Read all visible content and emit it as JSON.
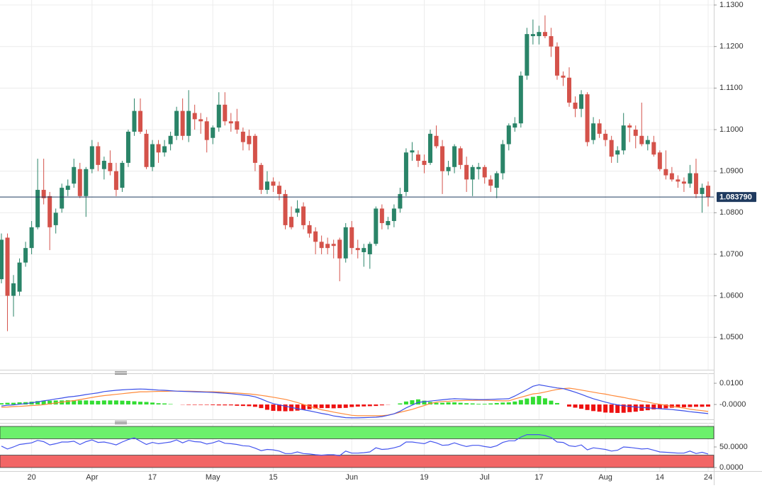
{
  "chart_data": {
    "type": "candlestick",
    "up_color": "#2a8468",
    "down_color": "#d4524a",
    "categories": [
      null,
      null,
      null,
      null,
      null,
      "20",
      null,
      null,
      null,
      null,
      null,
      null,
      null,
      null,
      null,
      "Apr",
      null,
      null,
      null,
      null,
      null,
      null,
      null,
      null,
      null,
      "17",
      null,
      null,
      null,
      null,
      null,
      null,
      null,
      null,
      null,
      "May",
      null,
      null,
      null,
      null,
      null,
      null,
      null,
      null,
      null,
      "15",
      null,
      null,
      null,
      null,
      null,
      null,
      null,
      null,
      null,
      null,
      null,
      null,
      "Jun",
      null,
      null,
      null,
      null,
      null,
      null,
      null,
      null,
      null,
      null,
      null,
      "19",
      null,
      null,
      null,
      null,
      null,
      null,
      null,
      null,
      null,
      "Jul",
      null,
      null,
      null,
      null,
      null,
      null,
      null,
      null,
      "17",
      null,
      null,
      null,
      null,
      null,
      null,
      null,
      null,
      null,
      null,
      "Aug",
      null,
      null,
      null,
      null,
      null,
      null,
      null,
      null,
      "14",
      null,
      null,
      null,
      null,
      null,
      null,
      null,
      "24"
    ],
    "ohlc": [
      [
        1.064,
        1.075,
        1.063,
        1.0735
      ],
      [
        1.074,
        1.075,
        1.0515,
        1.06
      ],
      [
        1.06,
        1.065,
        1.055,
        1.063
      ],
      [
        1.061,
        1.069,
        1.06,
        1.068
      ],
      [
        1.068,
        1.073,
        1.067,
        1.0715
      ],
      [
        1.0715,
        1.078,
        1.07,
        1.0765
      ],
      [
        1.0765,
        1.093,
        1.076,
        1.0855
      ],
      [
        1.0855,
        1.093,
        1.082,
        1.0835
      ],
      [
        1.084,
        1.085,
        1.071,
        1.0765
      ],
      [
        1.077,
        1.081,
        1.075,
        1.08
      ],
      [
        1.081,
        1.087,
        1.08,
        1.086
      ],
      [
        1.0855,
        1.088,
        1.084,
        1.0865
      ],
      [
        1.087,
        1.093,
        1.086,
        1.091
      ],
      [
        1.0905,
        1.092,
        1.0835,
        1.084
      ],
      [
        1.084,
        1.091,
        1.079,
        1.0905
      ],
      [
        1.0905,
        1.0975,
        1.0895,
        1.096
      ],
      [
        1.096,
        1.097,
        1.09,
        1.0915
      ],
      [
        1.0905,
        1.0935,
        1.088,
        1.0925
      ],
      [
        1.092,
        1.095,
        1.089,
        1.09
      ],
      [
        1.09,
        1.092,
        1.084,
        1.0855
      ],
      [
        1.086,
        1.0925,
        1.085,
        1.092
      ],
      [
        1.092,
        1.1,
        1.091,
        1.0995
      ],
      [
        1.0995,
        1.1075,
        1.0985,
        1.1045
      ],
      [
        1.1045,
        1.1075,
        1.099,
        1.0995
      ],
      [
        1.099,
        1.1,
        1.0905,
        1.091
      ],
      [
        1.091,
        1.0975,
        1.09,
        1.0965
      ],
      [
        1.0965,
        1.0975,
        1.092,
        1.0945
      ],
      [
        1.0945,
        1.0975,
        1.0935,
        1.096
      ],
      [
        1.0965,
        1.0995,
        1.095,
        1.0985
      ],
      [
        1.0985,
        1.1055,
        1.0975,
        1.1045
      ],
      [
        1.1045,
        1.1075,
        1.0975,
        1.0985
      ],
      [
        1.0985,
        1.1095,
        1.097,
        1.1045
      ],
      [
        1.104,
        1.106,
        1.1,
        1.1025
      ],
      [
        1.1025,
        1.104,
        1.099,
        1.102
      ],
      [
        1.102,
        1.103,
        1.0945,
        1.0975
      ],
      [
        1.098,
        1.101,
        1.0965,
        1.1005
      ],
      [
        1.1005,
        1.109,
        1.0995,
        1.106
      ],
      [
        1.106,
        1.109,
        1.101,
        1.102
      ],
      [
        1.102,
        1.104,
        1.0995,
        1.1015
      ],
      [
        1.102,
        1.105,
        1.099,
        1.1
      ],
      [
        1.0995,
        1.1005,
        1.095,
        1.097
      ],
      [
        1.0985,
        1.1,
        1.095,
        1.0965
      ],
      [
        1.0985,
        1.099,
        1.09,
        1.092
      ],
      [
        1.0915,
        1.092,
        1.0845,
        1.0855
      ],
      [
        1.0855,
        1.09,
        1.0845,
        1.0875
      ],
      [
        1.0875,
        1.0885,
        1.085,
        1.0865
      ],
      [
        1.0865,
        1.0875,
        1.083,
        1.0845
      ],
      [
        1.0845,
        1.0855,
        1.076,
        1.077
      ],
      [
        1.079,
        1.0815,
        1.076,
        1.0765
      ],
      [
        1.08,
        1.083,
        1.079,
        1.081
      ],
      [
        1.0815,
        1.0825,
        1.076,
        1.077
      ],
      [
        1.077,
        1.078,
        1.074,
        1.075
      ],
      [
        1.0755,
        1.0765,
        1.07,
        1.073
      ],
      [
        1.073,
        1.0745,
        1.07,
        1.0715
      ],
      [
        1.0725,
        1.074,
        1.07,
        1.0715
      ],
      [
        1.0725,
        1.0735,
        1.069,
        1.072
      ],
      [
        1.0735,
        1.074,
        1.0635,
        1.069
      ],
      [
        1.069,
        1.0775,
        1.068,
        1.0765
      ],
      [
        1.0765,
        1.078,
        1.07,
        1.0715
      ],
      [
        1.0715,
        1.0735,
        1.069,
        1.071
      ],
      [
        1.0705,
        1.0725,
        1.067,
        1.0715
      ],
      [
        1.07,
        1.073,
        1.0665,
        1.0725
      ],
      [
        1.0725,
        1.0815,
        1.072,
        1.081
      ],
      [
        1.081,
        1.082,
        1.076,
        1.0775
      ],
      [
        1.077,
        1.079,
        1.076,
        1.078
      ],
      [
        1.078,
        1.082,
        1.0765,
        1.081
      ],
      [
        1.081,
        1.086,
        1.08,
        1.0845
      ],
      [
        1.085,
        1.0955,
        1.084,
        1.0945
      ],
      [
        1.0945,
        1.097,
        1.0925,
        1.095
      ],
      [
        1.094,
        1.095,
        1.091,
        1.0925
      ],
      [
        1.0925,
        1.094,
        1.0895,
        1.0915
      ],
      [
        1.092,
        1.1,
        1.0915,
        1.099
      ],
      [
        1.0985,
        1.101,
        1.0955,
        1.096
      ],
      [
        1.096,
        1.0975,
        1.0845,
        1.09
      ],
      [
        1.09,
        1.0925,
        1.089,
        1.091
      ],
      [
        1.091,
        1.0965,
        1.0895,
        1.096
      ],
      [
        1.0955,
        1.096,
        1.0905,
        1.0915
      ],
      [
        1.0915,
        1.0935,
        1.085,
        1.088
      ],
      [
        1.088,
        1.0915,
        1.084,
        1.091
      ],
      [
        1.0905,
        1.092,
        1.088,
        1.091
      ],
      [
        1.091,
        1.0915,
        1.087,
        1.0885
      ],
      [
        1.088,
        1.089,
        1.085,
        1.0865
      ],
      [
        1.086,
        1.09,
        1.0835,
        1.0895
      ],
      [
        1.0895,
        1.0975,
        1.088,
        1.0965
      ],
      [
        1.0965,
        1.1015,
        1.095,
        1.101
      ],
      [
        1.1005,
        1.103,
        1.0995,
        1.1015
      ],
      [
        1.1015,
        1.114,
        1.1005,
        1.113
      ],
      [
        1.113,
        1.1245,
        1.112,
        1.123
      ],
      [
        1.1225,
        1.1265,
        1.1205,
        1.123
      ],
      [
        1.1225,
        1.125,
        1.1205,
        1.1235
      ],
      [
        1.1235,
        1.1275,
        1.122,
        1.1225
      ],
      [
        1.1225,
        1.1245,
        1.1175,
        1.12
      ],
      [
        1.12,
        1.121,
        1.112,
        1.113
      ],
      [
        1.113,
        1.114,
        1.1105,
        1.1125
      ],
      [
        1.1125,
        1.115,
        1.1055,
        1.1065
      ],
      [
        1.1065,
        1.108,
        1.103,
        1.105
      ],
      [
        1.105,
        1.1095,
        1.103,
        1.1085
      ],
      [
        1.1085,
        1.109,
        1.096,
        1.097
      ],
      [
        1.0975,
        1.103,
        1.0965,
        1.1015
      ],
      [
        1.1015,
        1.1025,
        1.098,
        1.099
      ],
      [
        1.099,
        1.1,
        1.096,
        1.0975
      ],
      [
        1.0975,
        1.0985,
        1.092,
        1.0935
      ],
      [
        1.094,
        1.096,
        1.092,
        1.095
      ],
      [
        1.095,
        1.104,
        1.094,
        1.101
      ],
      [
        1.101,
        1.1015,
        1.097,
        1.1005
      ],
      [
        1.1,
        1.101,
        1.0955,
        1.0985
      ],
      [
        1.0985,
        1.1065,
        1.096,
        1.0965
      ],
      [
        1.0965,
        1.0985,
        1.095,
        1.0975
      ],
      [
        1.097,
        1.0985,
        1.0935,
        1.094
      ],
      [
        1.0945,
        1.095,
        1.09,
        1.0905
      ],
      [
        1.0905,
        1.095,
        1.088,
        1.089
      ],
      [
        1.0895,
        1.091,
        1.0875,
        1.088
      ],
      [
        1.088,
        1.089,
        1.086,
        1.0875
      ],
      [
        1.0875,
        1.0885,
        1.085,
        1.087
      ],
      [
        1.087,
        1.0915,
        1.086,
        1.0895
      ],
      [
        1.0895,
        1.093,
        1.0835,
        1.0845
      ],
      [
        1.0845,
        1.087,
        1.08,
        1.086
      ],
      [
        1.0865,
        1.0875,
        1.0815,
        1.08379
      ]
    ],
    "ylim": [
      1.0422,
      1.1312
    ],
    "yticks": [
      {
        "value": 1.13,
        "label": "1.1300"
      },
      {
        "value": 1.12,
        "label": "1.1200"
      },
      {
        "value": 1.11,
        "label": "1.1100"
      },
      {
        "value": 1.1,
        "label": "1.1000"
      },
      {
        "value": 1.09,
        "label": "1.0900"
      },
      {
        "value": 1.08,
        "label": "1.0800"
      },
      {
        "value": 1.07,
        "label": "1.0700"
      },
      {
        "value": 1.06,
        "label": "1.0600"
      },
      {
        "value": 1.05,
        "label": "1.0500"
      }
    ],
    "grid": true,
    "price_line": {
      "value": 1.08379,
      "label": "1.083790",
      "color": "#1f3a5f"
    },
    "macd": {
      "ylim": [
        -0.007,
        0.0147
      ],
      "yticks": [
        {
          "value": 0.01,
          "label": "0.0100"
        },
        {
          "value": 0,
          "label": "-0.0000"
        }
      ],
      "macd_color": "#3a4ee8",
      "signal_color": "#ff8a3a",
      "up_color": "#33dd33",
      "down_color": "#ee1111",
      "macd": [
        -0.0007,
        -0.0004,
        -0.0002,
        0.0001,
        0.0004,
        0.0008,
        0.0012,
        0.0017,
        0.0021,
        0.0026,
        0.003,
        0.0035,
        0.0038,
        0.0042,
        0.0047,
        0.0051,
        0.0055,
        0.0061,
        0.0064,
        0.0067,
        0.0069,
        0.0071,
        0.0072,
        0.0073,
        0.0072,
        0.007,
        0.0068,
        0.0067,
        0.0065,
        0.0063,
        0.0062,
        0.0061,
        0.006,
        0.0059,
        0.0058,
        0.0057,
        0.0055,
        0.0053,
        0.0051,
        0.0048,
        0.0045,
        0.0042,
        0.0036,
        0.0026,
        0.0014,
        0.0004,
        -0.0002,
        -0.0008,
        -0.0014,
        -0.002,
        -0.0025,
        -0.003,
        -0.0036,
        -0.0042,
        -0.0047,
        -0.0054,
        -0.0058,
        -0.0062,
        -0.0063,
        -0.0063,
        -0.0062,
        -0.0061,
        -0.006,
        -0.0057,
        -0.0051,
        -0.0044,
        -0.0032,
        -0.0016,
        -0.0003,
        0.001,
        0.0013,
        0.0016,
        0.0019,
        0.0022,
        0.0025,
        0.0027,
        0.0026,
        0.0025,
        0.0024,
        0.0023,
        0.0023,
        0.0024,
        0.0025,
        0.0026,
        0.0027,
        0.004,
        0.0055,
        0.007,
        0.0086,
        0.0093,
        0.0088,
        0.0083,
        0.0078,
        0.0075,
        0.0067,
        0.0058,
        0.0048,
        0.0037,
        0.0027,
        0.0019,
        0.0011,
        0.0004,
        -0.0002,
        -0.0006,
        -0.0009,
        -0.0012,
        -0.0014,
        -0.0016,
        -0.0018,
        -0.002,
        -0.0022,
        -0.0024,
        -0.0027,
        -0.003,
        -0.0034,
        -0.0037,
        -0.004,
        -0.0043
      ],
      "signal": [
        -0.0013,
        -0.0012,
        -0.001,
        -0.0009,
        -0.0007,
        -0.0005,
        -0.0004,
        -0.0001,
        0.0003,
        0.0007,
        0.0011,
        0.0015,
        0.0018,
        0.0023,
        0.0028,
        0.0033,
        0.0038,
        0.0042,
        0.0045,
        0.0048,
        0.0051,
        0.0054,
        0.0057,
        0.006,
        0.006,
        0.0061,
        0.0062,
        0.0062,
        0.0063,
        0.0063,
        0.0063,
        0.0063,
        0.0062,
        0.0061,
        0.006,
        0.006,
        0.0059,
        0.0057,
        0.0055,
        0.0054,
        0.0052,
        0.005,
        0.0047,
        0.0043,
        0.0039,
        0.0034,
        0.0029,
        0.0024,
        0.0017,
        0.0009,
        0,
        -0.0008,
        -0.0017,
        -0.0025,
        -0.003,
        -0.0036,
        -0.0041,
        -0.0046,
        -0.0051,
        -0.0053,
        -0.0053,
        -0.0053,
        -0.0053,
        -0.0053,
        -0.005,
        -0.0044,
        -0.0037,
        -0.003,
        -0.0023,
        -0.0014,
        -0.0005,
        0.0004,
        0.0011,
        0.0014,
        0.0015,
        0.0017,
        0.0018,
        0.0019,
        0.0019,
        0.002,
        0.002,
        0.0019,
        0.0018,
        0.0017,
        0.0017,
        0.0026,
        0.0034,
        0.0042,
        0.005,
        0.0053,
        0.0059,
        0.0065,
        0.0071,
        0.0075,
        0.0077,
        0.0073,
        0.0068,
        0.0063,
        0.0058,
        0.0053,
        0.0049,
        0.0043,
        0.0038,
        0.0033,
        0.0027,
        0.0022,
        0.0016,
        0.0011,
        0.0005,
        0.0001,
        -0.0004,
        -0.0009,
        -0.0013,
        -0.0017,
        -0.0022,
        -0.0026,
        -0.0029,
        -0.0033
      ],
      "histogram": [
        0.0006,
        0.0008,
        0.0008,
        0.001,
        0.0011,
        0.0013,
        0.0016,
        0.0018,
        0.0018,
        0.0019,
        0.0019,
        0.002,
        0.002,
        0.0019,
        0.0019,
        0.0018,
        0.0017,
        0.0019,
        0.0019,
        0.0019,
        0.0018,
        0.0017,
        0.0015,
        0.0013,
        0.0012,
        0.0009,
        0.0006,
        0.0005,
        0.0002,
        0,
        -0.0001,
        -0.0002,
        -0.0002,
        -0.0002,
        -0.0002,
        -0.0003,
        -0.0004,
        -0.0004,
        -0.0004,
        -0.0006,
        -0.0007,
        -0.0008,
        -0.0011,
        -0.0017,
        -0.0025,
        -0.003,
        -0.0031,
        -0.0032,
        -0.0031,
        -0.0029,
        -0.0025,
        -0.0022,
        -0.0019,
        -0.0017,
        -0.0017,
        -0.0018,
        -0.0017,
        -0.0016,
        -0.0012,
        -0.001,
        -0.0009,
        -0.0008,
        -0.0007,
        -0.0004,
        -0.0001,
        0,
        0.0005,
        0.0014,
        0.002,
        0.0024,
        0.0018,
        0.0012,
        0.0008,
        0.0008,
        0.001,
        0.001,
        0.0008,
        0.0006,
        0.0005,
        0.0003,
        0.0003,
        0.0005,
        0.0007,
        0.0009,
        0.001,
        0.0014,
        0.0021,
        0.0028,
        0.0036,
        0.004,
        0.0029,
        0.0018,
        0.0007,
        0,
        -0.001,
        -0.0015,
        -0.002,
        -0.0026,
        -0.0031,
        -0.0034,
        -0.0038,
        -0.0039,
        -0.004,
        -0.0039,
        -0.0036,
        -0.0034,
        -0.003,
        -0.0027,
        -0.0023,
        -0.0021,
        -0.0018,
        -0.0015,
        -0.0014,
        -0.0013,
        -0.0012,
        -0.0011,
        -0.0011,
        -0.001
      ]
    },
    "rsi": {
      "ylim": [
        -8.6,
        108.6
      ],
      "yticks": [
        {
          "value": 50,
          "label": "50.0000"
        },
        {
          "value": 0,
          "label": "0.0000"
        }
      ],
      "color": "#4455ee",
      "overbought": 70,
      "oversold": 30,
      "overbought_color": "#6cf06c",
      "oversold_color": "#f26666",
      "values": [
        52,
        45,
        50,
        56,
        58,
        60,
        66,
        63,
        55,
        58,
        62,
        62,
        64,
        56,
        63,
        67,
        61,
        62,
        59,
        55,
        62,
        68,
        72,
        64,
        56,
        61,
        58,
        60,
        62,
        67,
        60,
        66,
        63,
        62,
        57,
        60,
        65,
        59,
        58,
        56,
        53,
        52,
        47,
        41,
        44,
        43,
        40,
        34,
        34,
        38,
        34,
        33,
        31,
        30,
        31,
        31,
        29,
        40,
        35,
        35,
        36,
        38,
        48,
        44,
        45,
        48,
        52,
        62,
        62,
        60,
        58,
        64,
        60,
        54,
        55,
        60,
        55,
        51,
        54,
        54,
        51,
        49,
        53,
        61,
        65,
        65,
        74,
        80,
        80,
        80,
        78,
        73,
        62,
        61,
        53,
        51,
        55,
        43,
        48,
        46,
        44,
        40,
        42,
        50,
        49,
        47,
        45,
        46,
        42,
        38,
        37,
        36,
        35,
        35,
        40,
        34,
        37,
        33
      ]
    }
  }
}
